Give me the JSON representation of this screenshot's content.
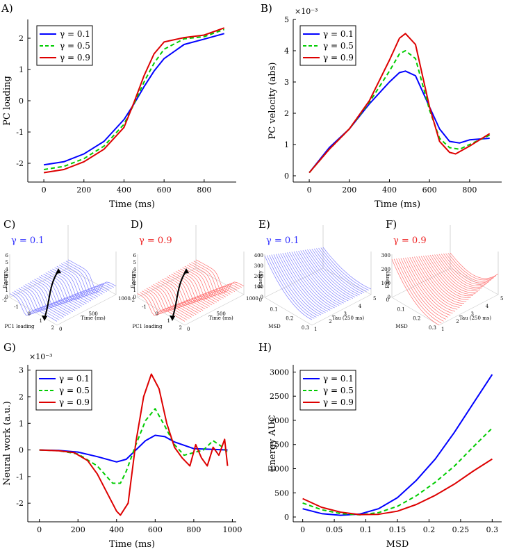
{
  "panel_labels": {
    "A": "A)",
    "B": "B)",
    "C": "C)",
    "D": "D)",
    "E": "E)",
    "F": "F)",
    "G": "G)",
    "H": "H)"
  },
  "colors": {
    "g01": "#0000ff",
    "g05": "#00cc00",
    "g09": "#dd0000",
    "surf_blue": "#8080ff",
    "surf_red": "#ff6f6f"
  },
  "chart_data": [
    {
      "id": "A",
      "type": "line",
      "xlabel": "Time (ms)",
      "ylabel": "PC loading",
      "xlim": [
        -80,
        960
      ],
      "ylim": [
        -2.6,
        2.6
      ],
      "xticks": [
        0,
        200,
        400,
        600,
        800
      ],
      "yticks": [
        -2,
        -1,
        0,
        1,
        2
      ],
      "xtick_labels": [
        "0",
        "200",
        "400",
        "600",
        "800"
      ],
      "ytick_labels": [
        "-2",
        "-1",
        "0",
        "1",
        "2"
      ],
      "series": [
        {
          "name": "γ = 0.1",
          "style": "solid",
          "color": "#0000ff",
          "x": [
            0,
            100,
            200,
            300,
            400,
            450,
            500,
            550,
            600,
            700,
            800,
            900
          ],
          "y": [
            -2.05,
            -1.95,
            -1.7,
            -1.3,
            -0.6,
            -0.1,
            0.45,
            0.95,
            1.35,
            1.8,
            1.97,
            2.15
          ]
        },
        {
          "name": "γ = 0.5",
          "style": "dashed",
          "color": "#00cc00",
          "x": [
            0,
            100,
            200,
            300,
            400,
            450,
            500,
            550,
            600,
            700,
            800,
            900
          ],
          "y": [
            -2.2,
            -2.1,
            -1.85,
            -1.45,
            -0.75,
            -0.1,
            0.6,
            1.2,
            1.65,
            1.98,
            2.05,
            2.28
          ]
        },
        {
          "name": "γ = 0.9",
          "style": "solid",
          "color": "#dd0000",
          "x": [
            0,
            100,
            200,
            300,
            400,
            450,
            500,
            550,
            600,
            700,
            800,
            900
          ],
          "y": [
            -2.3,
            -2.2,
            -1.95,
            -1.55,
            -0.85,
            -0.05,
            0.8,
            1.5,
            1.88,
            2.02,
            2.1,
            2.33
          ]
        }
      ]
    },
    {
      "id": "B",
      "type": "line",
      "xlabel": "Time (ms)",
      "ylabel": "PC velocity (abs)",
      "exponent": "×10⁻³",
      "xlim": [
        -80,
        960
      ],
      "ylim": [
        -0.2,
        5.0
      ],
      "xticks": [
        0,
        200,
        400,
        600,
        800
      ],
      "yticks": [
        0,
        1,
        2,
        3,
        4,
        5
      ],
      "xtick_labels": [
        "0",
        "200",
        "400",
        "600",
        "800"
      ],
      "ytick_labels": [
        "0",
        "1",
        "2",
        "3",
        "4",
        "5"
      ],
      "series": [
        {
          "name": "γ = 0.1",
          "style": "solid",
          "color": "#0000ff",
          "x": [
            0,
            100,
            200,
            300,
            400,
            450,
            480,
            530,
            600,
            650,
            700,
            750,
            800,
            900
          ],
          "y": [
            0.1,
            0.9,
            1.5,
            2.3,
            3.0,
            3.3,
            3.35,
            3.2,
            2.2,
            1.5,
            1.1,
            1.05,
            1.15,
            1.2
          ]
        },
        {
          "name": "γ = 0.5",
          "style": "dashed",
          "color": "#00cc00",
          "x": [
            0,
            100,
            200,
            300,
            400,
            450,
            480,
            530,
            600,
            650,
            700,
            750,
            800,
            900
          ],
          "y": [
            0.1,
            0.85,
            1.5,
            2.35,
            3.35,
            3.9,
            4.0,
            3.75,
            2.1,
            1.2,
            0.9,
            0.85,
            1.0,
            1.3
          ]
        },
        {
          "name": "γ = 0.9",
          "style": "solid",
          "color": "#dd0000",
          "x": [
            0,
            100,
            200,
            300,
            400,
            450,
            480,
            530,
            600,
            650,
            700,
            730,
            800,
            900
          ],
          "y": [
            0.1,
            0.85,
            1.5,
            2.4,
            3.7,
            4.4,
            4.55,
            4.2,
            2.2,
            1.1,
            0.75,
            0.7,
            0.95,
            1.35
          ]
        }
      ]
    },
    {
      "id": "C",
      "type": "surface",
      "title": "γ = 0.1",
      "zlabel": "Energy",
      "xlabel": "Time (ms)",
      "ylabel": "PC1 loading",
      "xticks": [
        "0",
        "500",
        "1000"
      ],
      "yticks": [
        "-2",
        "-1",
        "0",
        "1",
        "2"
      ],
      "zticks": [
        "0",
        "1",
        "2",
        "3",
        "4",
        "5",
        "6"
      ]
    },
    {
      "id": "D",
      "type": "surface",
      "title": "γ = 0.9",
      "zlabel": "Energy",
      "xlabel": "Time (ms)",
      "ylabel": "PC1 loading",
      "xticks": [
        "0",
        "500",
        "1000"
      ],
      "yticks": [
        "-2",
        "-1",
        "0",
        "1",
        "2"
      ],
      "zticks": [
        "0",
        "1",
        "2",
        "3",
        "4",
        "5",
        "6"
      ]
    },
    {
      "id": "E",
      "type": "surface",
      "title": "γ = 0.1",
      "zlabel": "Energy",
      "xlabel": "Tau (250 ms)",
      "ylabel": "MSD",
      "xticks": [
        "1",
        "2",
        "3",
        "4",
        "5"
      ],
      "yticks": [
        "0",
        "0.1",
        "0.2",
        "0.3"
      ],
      "zticks": [
        "0",
        "100",
        "200",
        "300",
        "400"
      ]
    },
    {
      "id": "F",
      "type": "surface",
      "title": "γ = 0.9",
      "zlabel": "Energy",
      "xlabel": "Tau (250 ms)",
      "ylabel": "MSD",
      "xticks": [
        "1",
        "2",
        "3",
        "4",
        "5"
      ],
      "yticks": [
        "0",
        "0.1",
        "0.2",
        "0.3"
      ],
      "zticks": [
        "0",
        "100",
        "200",
        "300"
      ]
    },
    {
      "id": "G",
      "type": "line",
      "xlabel": "Time (ms)",
      "ylabel": "Neural work (a.u.)",
      "exponent": "×10⁻³",
      "xlim": [
        -60,
        1020
      ],
      "ylim": [
        -2.7,
        3.2
      ],
      "xticks": [
        0,
        200,
        400,
        600,
        800,
        1000
      ],
      "yticks": [
        -2,
        -1,
        0,
        1,
        2,
        3
      ],
      "xtick_labels": [
        "0",
        "200",
        "400",
        "600",
        "800",
        "1000"
      ],
      "ytick_labels": [
        "-2",
        "-1",
        "0",
        "1",
        "2",
        "3"
      ],
      "series": [
        {
          "name": "γ = 0.1",
          "style": "solid",
          "color": "#0000ff",
          "x": [
            0,
            100,
            200,
            300,
            400,
            450,
            500,
            550,
            600,
            650,
            700,
            800,
            900,
            975
          ],
          "y": [
            0,
            -0.02,
            -0.08,
            -0.25,
            -0.45,
            -0.35,
            0,
            0.35,
            0.55,
            0.5,
            0.3,
            0.05,
            0.02,
            0
          ]
        },
        {
          "name": "γ = 0.5",
          "style": "dashed",
          "color": "#00cc00",
          "x": [
            0,
            100,
            200,
            300,
            380,
            420,
            450,
            500,
            550,
            600,
            650,
            700,
            750,
            800,
            850,
            900,
            950,
            975
          ],
          "y": [
            0,
            -0.03,
            -0.15,
            -0.6,
            -1.25,
            -1.25,
            -0.8,
            0.2,
            1.1,
            1.55,
            0.9,
            0.2,
            -0.2,
            -0.1,
            0,
            0.35,
            0.1,
            -0.1
          ]
        },
        {
          "name": "γ = 0.9",
          "style": "solid",
          "color": "#dd0000",
          "x": [
            0,
            100,
            180,
            250,
            300,
            350,
            400,
            420,
            460,
            500,
            540,
            580,
            620,
            660,
            700,
            740,
            780,
            810,
            840,
            870,
            900,
            930,
            960,
            975
          ],
          "y": [
            0,
            -0.03,
            -0.1,
            -0.4,
            -0.9,
            -1.6,
            -2.3,
            -2.45,
            -2.0,
            0.3,
            2.0,
            2.85,
            2.3,
            1.0,
            0.1,
            -0.3,
            -0.6,
            0.2,
            -0.3,
            -0.6,
            0.1,
            -0.2,
            0.4,
            -0.6
          ]
        }
      ]
    },
    {
      "id": "H",
      "type": "line",
      "xlabel": "MSD",
      "ylabel": "Energy AUC",
      "xlim": [
        -0.015,
        0.315
      ],
      "ylim": [
        -100,
        3150
      ],
      "xticks": [
        0,
        0.05,
        0.1,
        0.15,
        0.2,
        0.25,
        0.3
      ],
      "yticks": [
        0,
        500,
        1000,
        1500,
        2000,
        2500,
        3000
      ],
      "xtick_labels": [
        "0",
        "0.05",
        "0.1",
        "0.15",
        "0.2",
        "0.25",
        "0.3"
      ],
      "ytick_labels": [
        "0",
        "500",
        "1000",
        "1500",
        "2000",
        "2500",
        "3000"
      ],
      "series": [
        {
          "name": "γ = 0.1",
          "style": "solid",
          "color": "#0000ff",
          "x": [
            0,
            0.03,
            0.06,
            0.09,
            0.12,
            0.15,
            0.18,
            0.21,
            0.24,
            0.27,
            0.3
          ],
          "y": [
            170,
            70,
            35,
            60,
            170,
            400,
            760,
            1200,
            1750,
            2350,
            2950
          ]
        },
        {
          "name": "γ = 0.5",
          "style": "dashed",
          "color": "#00cc00",
          "x": [
            0,
            0.03,
            0.06,
            0.09,
            0.12,
            0.15,
            0.18,
            0.21,
            0.24,
            0.27,
            0.3
          ],
          "y": [
            290,
            150,
            70,
            45,
            90,
            220,
            440,
            720,
            1050,
            1450,
            1840
          ]
        },
        {
          "name": "γ = 0.9",
          "style": "solid",
          "color": "#dd0000",
          "x": [
            0,
            0.03,
            0.06,
            0.09,
            0.12,
            0.15,
            0.18,
            0.21,
            0.24,
            0.27,
            0.3
          ],
          "y": [
            380,
            200,
            100,
            50,
            55,
            120,
            260,
            450,
            680,
            950,
            1200
          ]
        }
      ]
    }
  ]
}
